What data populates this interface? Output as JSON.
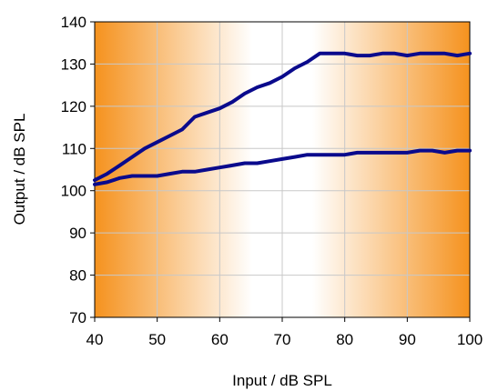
{
  "chart_data": {
    "type": "line",
    "xlabel": "Input / dB SPL",
    "ylabel": "Output / dB SPL",
    "xlim": [
      40,
      100
    ],
    "ylim": [
      70,
      140
    ],
    "xticks": [
      "40",
      "50",
      "60",
      "70",
      "80",
      "90",
      "100"
    ],
    "yticks": [
      "70",
      "80",
      "90",
      "100",
      "110",
      "120",
      "130",
      "140"
    ],
    "grid": true,
    "legend": "none",
    "background": "orange-white-orange gradient",
    "colors": {
      "series": "#0a0a8c",
      "grid": "#c8c8c8",
      "band_edge": "#f5921e",
      "band_center": "#ffffff"
    },
    "series": [
      {
        "x": [
          40,
          42,
          44,
          46,
          48,
          50,
          52,
          54,
          56,
          58,
          60,
          62,
          64,
          66,
          68,
          70,
          72,
          74,
          76,
          78,
          80,
          82,
          84,
          86,
          88,
          90,
          92,
          94,
          96,
          98,
          100
        ],
        "values": [
          102.5,
          104,
          106,
          108,
          110,
          111.5,
          113,
          114.5,
          117.5,
          118.5,
          119.5,
          121,
          123,
          124.5,
          125.5,
          127,
          129,
          130.5,
          132.5,
          132.5,
          132.5,
          132,
          132,
          132.5,
          132.5,
          132,
          132.5,
          132.5,
          132.5,
          132,
          132.5
        ]
      },
      {
        "x": [
          40,
          42,
          44,
          46,
          48,
          50,
          52,
          54,
          56,
          58,
          60,
          62,
          64,
          66,
          68,
          70,
          72,
          74,
          76,
          78,
          80,
          82,
          84,
          86,
          88,
          90,
          92,
          94,
          96,
          98,
          100
        ],
        "values": [
          101.5,
          102,
          103,
          103.5,
          103.5,
          103.5,
          104,
          104.5,
          104.5,
          105,
          105.5,
          106,
          106.5,
          106.5,
          107,
          107.5,
          108,
          108.5,
          108.5,
          108.5,
          108.5,
          109,
          109,
          109,
          109,
          109,
          109.5,
          109.5,
          109,
          109.5,
          109.5
        ]
      }
    ]
  }
}
